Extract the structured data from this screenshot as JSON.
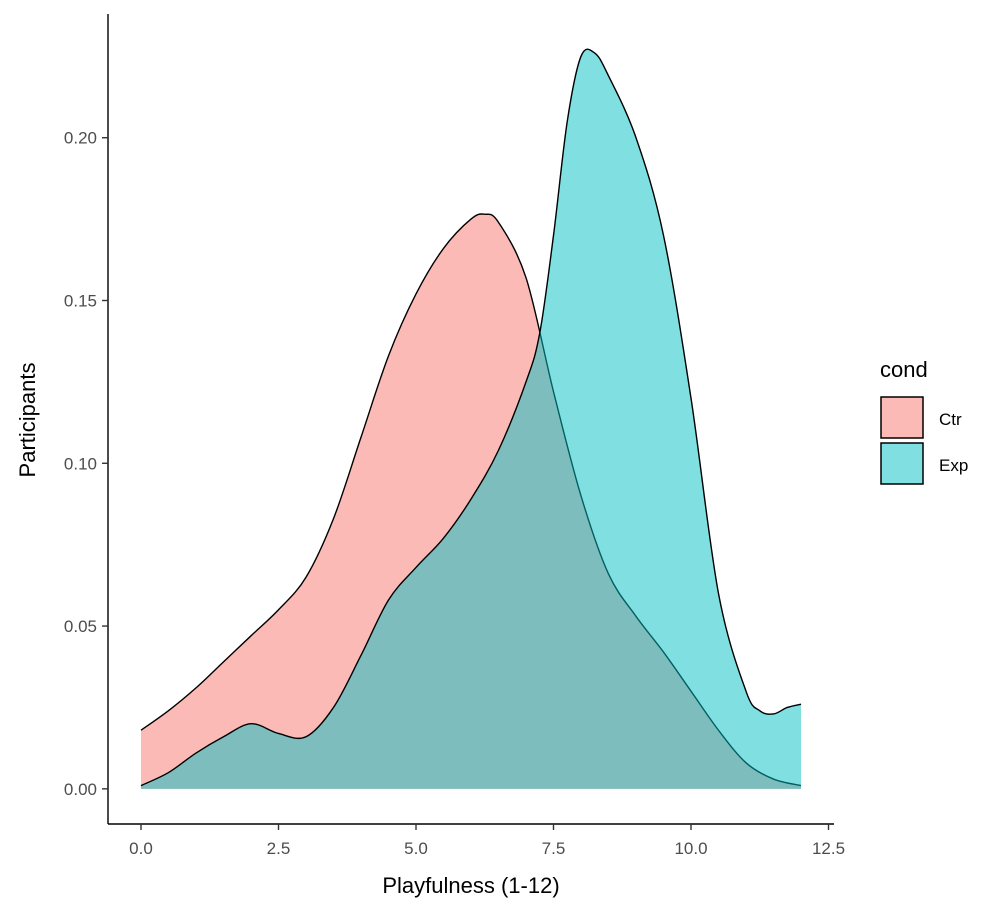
{
  "chart_data": {
    "type": "area",
    "subtype": "density",
    "xlabel": "Playfulness (1-12)",
    "ylabel": "Participants",
    "xlim": [
      -0.6,
      12.6
    ],
    "ylim": [
      -0.0108,
      0.238
    ],
    "x_ticks": [
      0.0,
      2.5,
      5.0,
      7.5,
      10.0,
      12.5
    ],
    "x_tick_labels": [
      "0.0",
      "2.5",
      "5.0",
      "7.5",
      "10.0",
      "12.5"
    ],
    "y_ticks": [
      0.0,
      0.05,
      0.1,
      0.15,
      0.2
    ],
    "y_tick_labels": [
      "0.00",
      "0.05",
      "0.10",
      "0.15",
      "0.20"
    ],
    "grid": false,
    "legend": {
      "title": "cond",
      "placement": "right"
    },
    "series": [
      {
        "name": "Ctr",
        "color": "#F8766D",
        "opacity": 0.5,
        "x": [
          0,
          0.5,
          1,
          1.5,
          2,
          2.5,
          3,
          3.5,
          4,
          4.5,
          5,
          5.5,
          6,
          6.25,
          6.5,
          7,
          7.5,
          8,
          8.5,
          9,
          9.5,
          10,
          10.5,
          11,
          11.5,
          12
        ],
        "y": [
          0.018,
          0.024,
          0.031,
          0.039,
          0.047,
          0.055,
          0.065,
          0.083,
          0.108,
          0.133,
          0.152,
          0.166,
          0.175,
          0.1765,
          0.174,
          0.157,
          0.122,
          0.09,
          0.066,
          0.053,
          0.042,
          0.03,
          0.018,
          0.008,
          0.003,
          0.001
        ]
      },
      {
        "name": "Exp",
        "color": "#00BFC4",
        "opacity": 0.5,
        "x": [
          0,
          0.5,
          1,
          1.5,
          2,
          2.5,
          3,
          3.5,
          4,
          4.5,
          5,
          5.5,
          6,
          6.5,
          7,
          7.25,
          7.5,
          7.75,
          8,
          8.25,
          8.5,
          9,
          9.5,
          10,
          10.5,
          11,
          11.25,
          11.5,
          11.75,
          12
        ],
        "y": [
          0.001,
          0.005,
          0.011,
          0.016,
          0.02,
          0.017,
          0.016,
          0.025,
          0.041,
          0.058,
          0.068,
          0.077,
          0.089,
          0.104,
          0.125,
          0.14,
          0.17,
          0.205,
          0.225,
          0.226,
          0.219,
          0.2,
          0.17,
          0.12,
          0.06,
          0.03,
          0.024,
          0.023,
          0.025,
          0.026
        ]
      }
    ]
  }
}
